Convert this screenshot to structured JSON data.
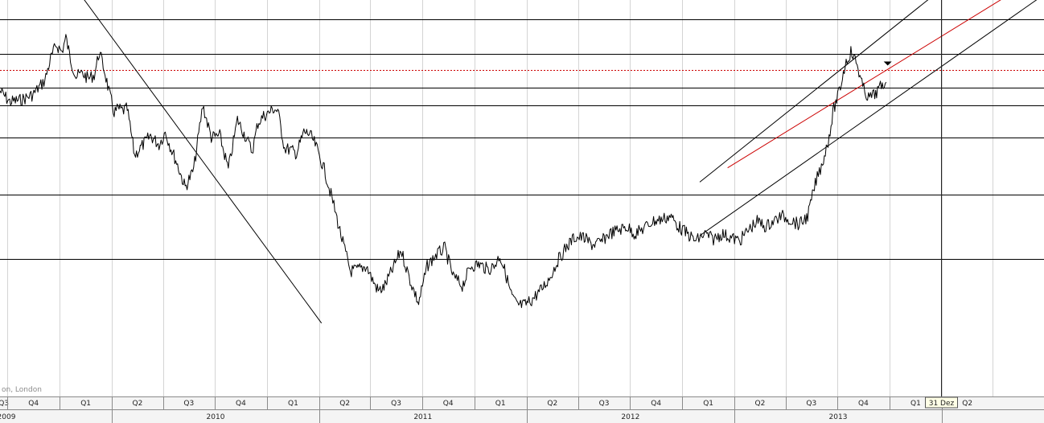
{
  "chart_data": {
    "type": "line",
    "title": "",
    "xlabel": "",
    "ylabel": "",
    "grid": true,
    "source_label": "on, London",
    "cursor_label": "31 Dez",
    "quarter_ticks": [
      "Q3",
      "Q4",
      "Q1",
      "Q2",
      "Q3",
      "Q4",
      "Q1",
      "Q2",
      "Q3",
      "Q4",
      "Q1",
      "Q2",
      "Q3",
      "Q4",
      "Q1",
      "Q2",
      "Q3",
      "Q4",
      "Q1",
      "Q2"
    ],
    "year_labels": [
      "2009",
      "2010",
      "2011",
      "2012",
      "2013"
    ],
    "x_range": [
      "2009-06-18",
      "2014-06-30"
    ],
    "series": [
      {
        "x": [
          "2009-06-18",
          "2009-07-05",
          "2009-07-25",
          "2009-08-15",
          "2009-09-05",
          "2009-09-15",
          "2009-09-25",
          "2009-10-05",
          "2009-10-12",
          "2009-10-20",
          "2009-10-30",
          "2009-11-10",
          "2009-11-20",
          "2009-12-01",
          "2009-12-10",
          "2009-12-20",
          "2009-12-28",
          "2010-01-05",
          "2010-01-12",
          "2010-01-20",
          "2010-01-28",
          "2010-02-10",
          "2010-02-25",
          "2010-03-10",
          "2010-03-25",
          "2010-04-05",
          "2010-04-15",
          "2010-04-25",
          "2010-05-10",
          "2010-05-25",
          "2010-06-10",
          "2010-06-25",
          "2010-07-10",
          "2010-07-25",
          "2010-08-10",
          "2010-08-25",
          "2010-09-05",
          "2010-09-15",
          "2010-09-25",
          "2010-10-05",
          "2010-10-12",
          "2010-10-20",
          "2010-11-01",
          "2010-11-12",
          "2010-11-22",
          "2010-12-05",
          "2010-12-15",
          "2010-12-25",
          "2011-01-10",
          "2011-01-25",
          "2011-02-10",
          "2011-02-25",
          "2011-03-10",
          "2011-03-25",
          "2011-04-05",
          "2011-04-15",
          "2011-04-25",
          "2011-05-10",
          "2011-05-25",
          "2011-06-10",
          "2011-06-25",
          "2011-07-10",
          "2011-07-25",
          "2011-08-10",
          "2011-08-25",
          "2011-09-10",
          "2011-09-25",
          "2011-10-10",
          "2011-10-25",
          "2011-11-05",
          "2011-11-15",
          "2011-11-25",
          "2011-12-05",
          "2011-12-15",
          "2011-12-28",
          "2012-01-10",
          "2012-01-25",
          "2012-02-10",
          "2012-02-25",
          "2012-03-10",
          "2012-03-25",
          "2012-04-10",
          "2012-04-25",
          "2012-05-10",
          "2012-05-25",
          "2012-06-10",
          "2012-06-25",
          "2012-07-10",
          "2012-07-25",
          "2012-08-10",
          "2012-08-25",
          "2012-09-10",
          "2012-09-25",
          "2012-10-10",
          "2012-10-25",
          "2012-11-10",
          "2012-11-25",
          "2012-12-10",
          "2012-12-25",
          "2013-01-10",
          "2013-01-25",
          "2013-02-10",
          "2013-02-25",
          "2013-03-10",
          "2013-03-25",
          "2013-04-10",
          "2013-04-25",
          "2013-05-10",
          "2013-05-25",
          "2013-06-05",
          "2013-06-15",
          "2013-06-25",
          "2013-07-05",
          "2013-07-15",
          "2013-07-25",
          "2013-08-05",
          "2013-08-15",
          "2013-08-25",
          "2013-09-05",
          "2013-09-15",
          "2013-09-25"
        ],
        "y": [
          0.4,
          0.34,
          0.35,
          0.38,
          0.46,
          0.58,
          0.66,
          0.62,
          0.7,
          0.58,
          0.48,
          0.5,
          0.47,
          0.49,
          0.62,
          0.5,
          0.38,
          0.28,
          0.3,
          0.29,
          0.3,
          0.04,
          0.1,
          0.15,
          0.1,
          0.17,
          0.08,
          0.0,
          -0.14,
          -0.04,
          0.32,
          0.14,
          0.15,
          -0.04,
          0.24,
          0.14,
          0.06,
          0.22,
          0.26,
          0.28,
          0.3,
          0.29,
          0.08,
          0.07,
          0.05,
          0.17,
          0.16,
          0.1,
          -0.04,
          -0.22,
          -0.43,
          -0.61,
          -0.6,
          -0.58,
          -0.66,
          -0.72,
          -0.7,
          -0.6,
          -0.49,
          -0.66,
          -0.79,
          -0.58,
          -0.52,
          -0.48,
          -0.64,
          -0.69,
          -0.58,
          -0.57,
          -0.6,
          -0.58,
          -0.52,
          -0.62,
          -0.74,
          -0.8,
          -0.8,
          -0.77,
          -0.72,
          -0.65,
          -0.55,
          -0.48,
          -0.42,
          -0.42,
          -0.46,
          -0.45,
          -0.4,
          -0.38,
          -0.36,
          -0.4,
          -0.37,
          -0.33,
          -0.32,
          -0.3,
          -0.36,
          -0.4,
          -0.44,
          -0.4,
          -0.43,
          -0.4,
          -0.42,
          -0.44,
          -0.38,
          -0.33,
          -0.36,
          -0.33,
          -0.3,
          -0.32,
          -0.35,
          -0.3,
          -0.1,
          0.0,
          0.12,
          0.3,
          0.4,
          0.55,
          0.62,
          0.55,
          0.42,
          0.36,
          0.38,
          0.42,
          0.45
        ]
      }
    ],
    "levels": [
      {
        "y": 0.8,
        "style": "solid",
        "color": "#000000"
      },
      {
        "y": 0.61,
        "style": "solid",
        "color": "#000000"
      },
      {
        "y": 0.52,
        "style": "dotted",
        "color": "#cc0000"
      },
      {
        "y": 0.42,
        "style": "solid",
        "color": "#000000"
      },
      {
        "y": 0.32,
        "style": "solid",
        "color": "#000000"
      },
      {
        "y": 0.14,
        "style": "solid",
        "color": "#000000"
      },
      {
        "y": -0.18,
        "style": "solid",
        "color": "#000000"
      },
      {
        "y": -0.54,
        "style": "solid",
        "color": "#000000"
      }
    ],
    "trendlines": [
      {
        "x": [
          "2009-10-10",
          "2011-01-05"
        ],
        "y": [
          1.06,
          -0.9
        ],
        "color": "#000000"
      },
      {
        "x": [
          "2012-11-01",
          "2013-12-31"
        ],
        "y": [
          -0.11,
          0.97
        ],
        "color": "#000000"
      },
      {
        "x": [
          "2012-11-01",
          "2014-06-30"
        ],
        "y": [
          -0.41,
          0.94
        ],
        "color": "#000000"
      },
      {
        "x": [
          "2012-12-20",
          "2014-06-30"
        ],
        "y": [
          -0.03,
          1.06
        ],
        "color": "#cc0000"
      }
    ],
    "cursor_x": "2013-12-31",
    "colors": {
      "line": "#000000",
      "accent": "#cc0000",
      "axis_bg": "#f4f4f4",
      "cursor_bg": "#ffffe6"
    }
  }
}
